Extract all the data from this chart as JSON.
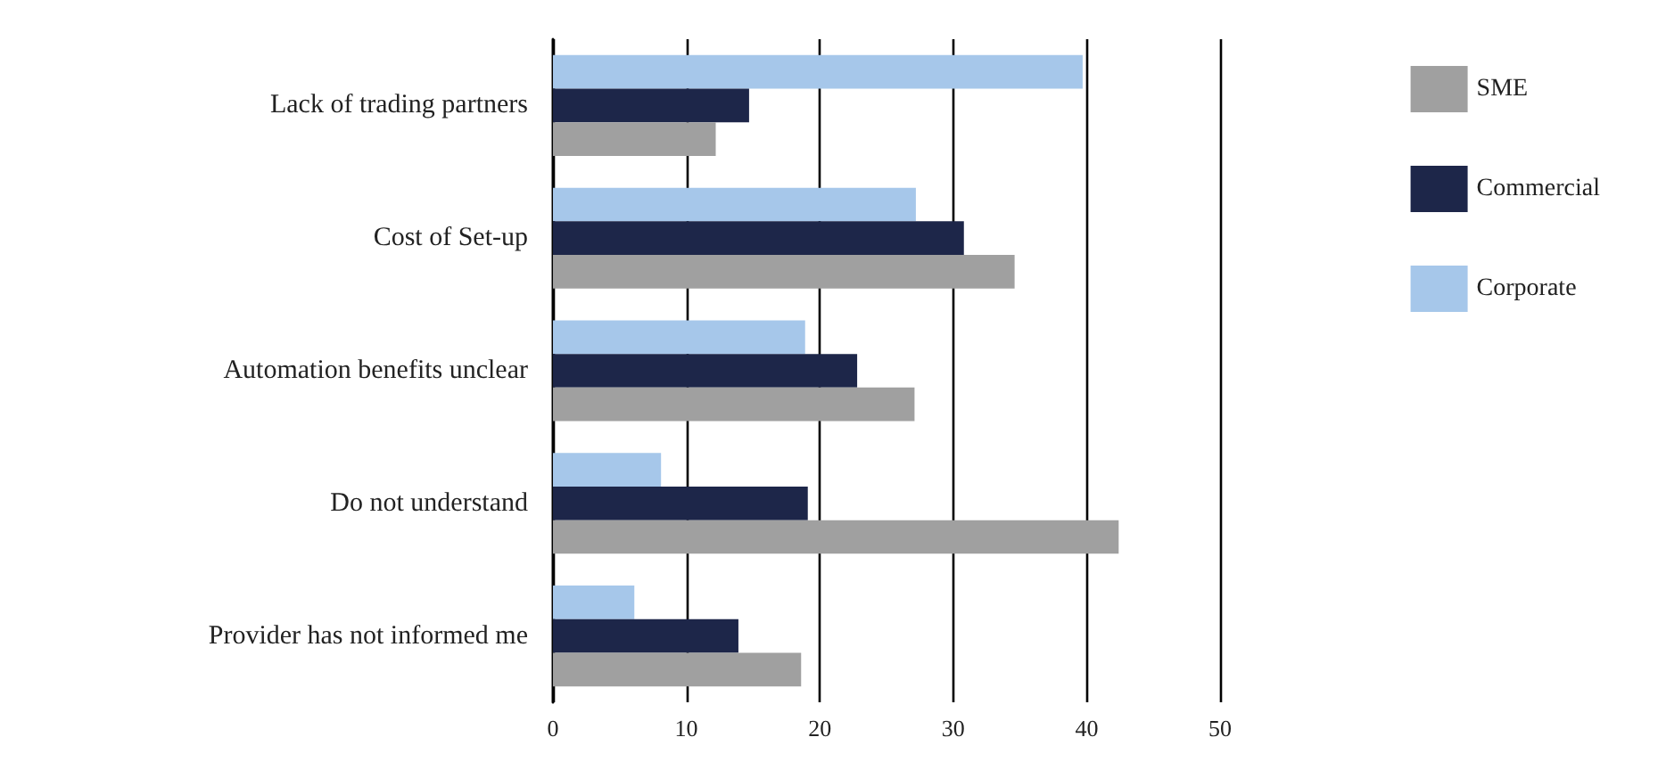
{
  "chart_data": {
    "type": "bar",
    "orientation": "horizontal",
    "categories": [
      "Lack of trading partners",
      "Cost of Set-up",
      "Automation benefits unclear",
      "Do not understand",
      "Provider has not informed me"
    ],
    "series": [
      {
        "name": "SME",
        "color": "#a0a0a0",
        "values": [
          12.2,
          34.6,
          27.1,
          42.4,
          18.6
        ]
      },
      {
        "name": "Commercial",
        "color": "#1d2649",
        "values": [
          14.7,
          30.8,
          22.8,
          19.1,
          13.9
        ]
      },
      {
        "name": "Corporate",
        "color": "#a6c7ea",
        "values": [
          39.7,
          27.2,
          18.9,
          8.1,
          6.1
        ]
      }
    ],
    "xlim": [
      0,
      50
    ],
    "xticks": [
      0,
      10,
      20,
      30,
      40,
      50
    ],
    "grid": "x",
    "legend": "right"
  }
}
